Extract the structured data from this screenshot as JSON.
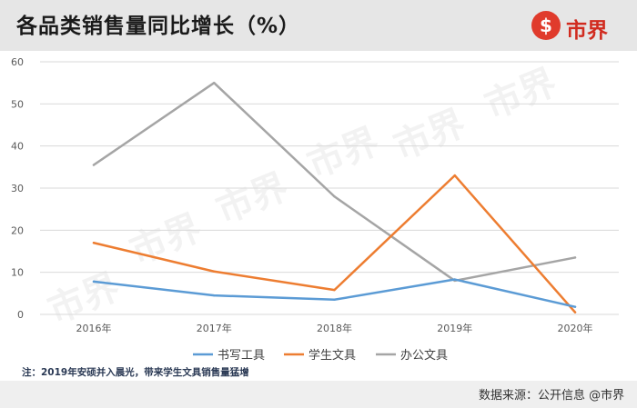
{
  "header": {
    "title": "各品类销售量同比增长（%）",
    "logo_symbol": "$",
    "logo_text": "市界"
  },
  "watermark": "市界",
  "note": "注：2019年安硕并入晨光，带来学生文具销售量猛增",
  "source": "数据来源：公开信息 @市界",
  "colors": {
    "header_bg": "#e6e6e6",
    "brand_red": "#d12b1f",
    "series": [
      "#5b9bd5",
      "#ed7d31",
      "#a5a5a5"
    ]
  },
  "chart_data": {
    "type": "line",
    "title": "各品类销售量同比增长（%）",
    "xlabel": "",
    "ylabel": "",
    "categories": [
      "2016年",
      "2017年",
      "2018年",
      "2019年",
      "2020年"
    ],
    "ylim": [
      0,
      60
    ],
    "yticks": [
      0,
      10,
      20,
      30,
      40,
      50,
      60
    ],
    "grid": true,
    "legend_position": "bottom",
    "series": [
      {
        "name": "书写工具",
        "color": "#5b9bd5",
        "values": [
          7.8,
          4.5,
          3.5,
          8.3,
          1.8
        ]
      },
      {
        "name": "学生文具",
        "color": "#ed7d31",
        "values": [
          17,
          10.2,
          5.8,
          33,
          0.5
        ]
      },
      {
        "name": "办公文具",
        "color": "#a5a5a5",
        "values": [
          35.5,
          55,
          28,
          8,
          13.5
        ]
      }
    ]
  }
}
